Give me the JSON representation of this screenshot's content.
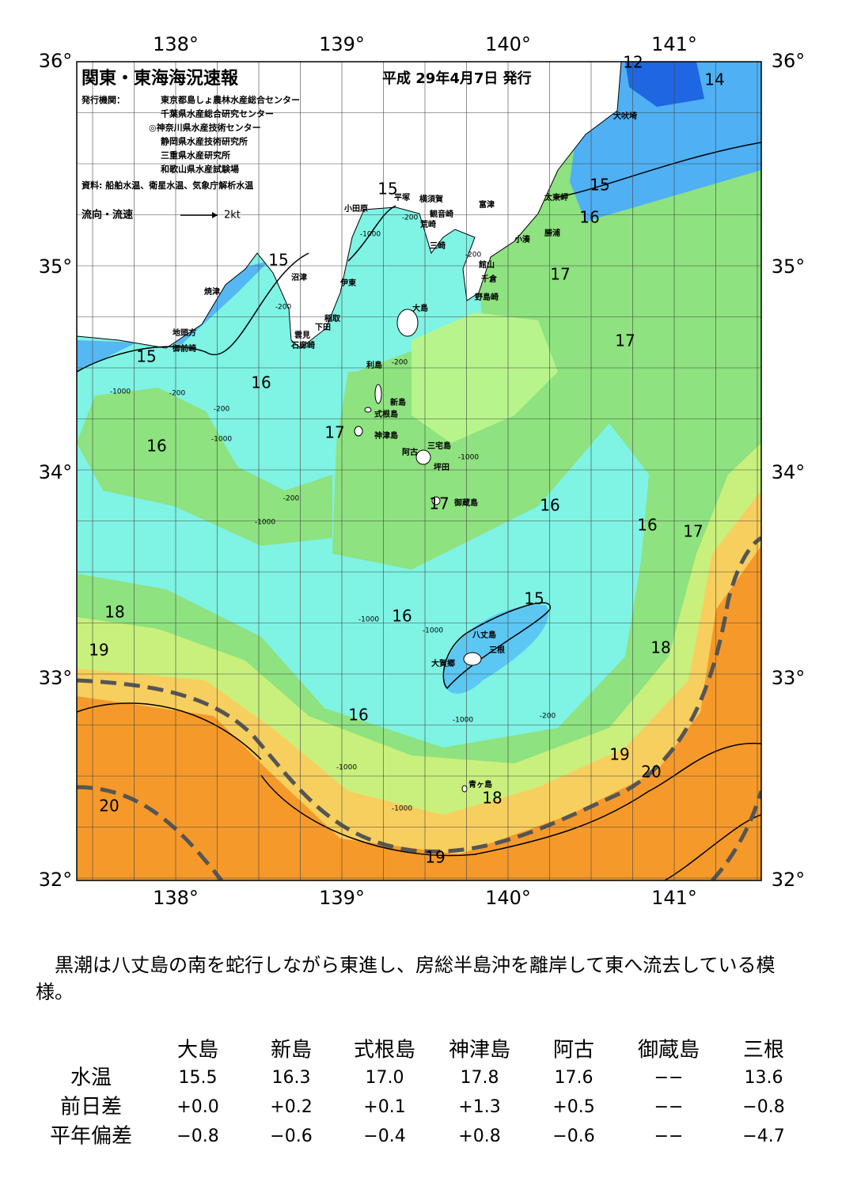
{
  "map": {
    "title": "関東・東海海況速報",
    "date": "平成 29年4月7日 発行",
    "publisher_label": "発行機関：",
    "publishers": [
      "東京都島しょ農林水産総合センター",
      "千葉県水産総合研究センター",
      "◎神奈川県水産技術センター",
      "静岡県水産技術研究所",
      "三重県水産研究所",
      "和歌山県水産試験場"
    ],
    "source": "資料: 船舶水温、衛星水温、気象庁解析水温",
    "current_legend": "流向・流速",
    "current_scale": "2kt",
    "lon_labels": [
      "138°",
      "139°",
      "140°",
      "141°"
    ],
    "lat_labels": [
      "36°",
      "35°",
      "34°",
      "33°",
      "32°"
    ],
    "places": [
      "犬吠埼",
      "太東岬",
      "勝浦",
      "小湊",
      "富津",
      "横須賀",
      "観音崎",
      "荒崎",
      "三崎",
      "平塚",
      "小田原",
      "館山",
      "千倉",
      "野島崎",
      "大島",
      "沼津",
      "伊東",
      "焼津",
      "稲取",
      "下田",
      "雲見",
      "石廊崎",
      "地頭方",
      "御前崎",
      "利島",
      "新島",
      "式根島",
      "神津島",
      "三宅島",
      "阿古",
      "坪田",
      "御蔵島",
      "八丈島",
      "三根",
      "大賀郷",
      "青ヶ島"
    ],
    "contour_labels": [
      12,
      14,
      15,
      16,
      17,
      17,
      15,
      15,
      15,
      16,
      16,
      17,
      17,
      16,
      16,
      17,
      15,
      16,
      18,
      19,
      18,
      16,
      19,
      20,
      18,
      20,
      19
    ],
    "depth_labels": [
      -1000,
      -200,
      -200,
      -200,
      -1000,
      -200,
      -200,
      -1000,
      -200,
      -1000,
      -200,
      -1000,
      -1000,
      -1000,
      -200,
      -1000,
      -1000,
      -1000
    ]
  },
  "summary": "黒潮は八丈島の南を蛇行しながら東進し、房総半島沖を離岸して東へ流去している模様。",
  "table": {
    "header": [
      "大島",
      "新島",
      "式根島",
      "神津島",
      "阿古",
      "御蔵島",
      "三根"
    ],
    "rows": [
      {
        "label": "水温",
        "values": [
          "15.5",
          "16.3",
          "17.0",
          "17.8",
          "17.6",
          "−−",
          "13.6"
        ]
      },
      {
        "label": "前日差",
        "values": [
          "+0.0",
          "+0.2",
          "+0.1",
          "+1.3",
          "+0.5",
          "−−",
          "−0.8"
        ]
      },
      {
        "label": "平年偏差",
        "values": [
          "−0.8",
          "−0.6",
          "−0.4",
          "+0.8",
          "−0.6",
          "−−",
          "−4.7"
        ]
      }
    ]
  }
}
